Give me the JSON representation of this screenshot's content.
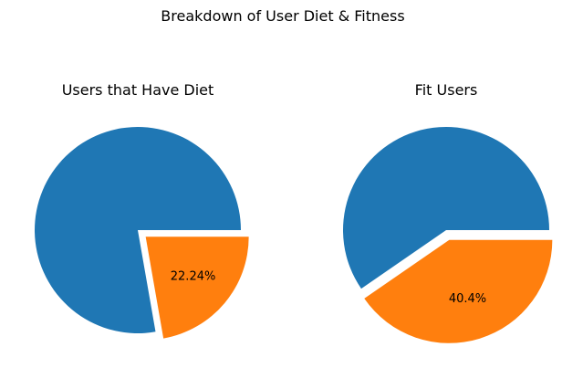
{
  "figure": {
    "suptitle": "Breakdown of User Diet & Fitness"
  },
  "chart_data": [
    {
      "type": "pie",
      "title": "Users that Have Diet",
      "slices": [
        {
          "value": 77.76,
          "color": "#1f77b4",
          "label": ""
        },
        {
          "value": 22.24,
          "color": "#ff7f0e",
          "label": "22.24%"
        }
      ],
      "explode": [
        0,
        0.1
      ]
    },
    {
      "type": "pie",
      "title": "Fit Users",
      "slices": [
        {
          "value": 59.6,
          "color": "#1f77b4",
          "label": ""
        },
        {
          "value": 40.4,
          "color": "#ff7f0e",
          "label": "40.4%"
        }
      ],
      "explode": [
        0,
        0.1
      ]
    }
  ]
}
